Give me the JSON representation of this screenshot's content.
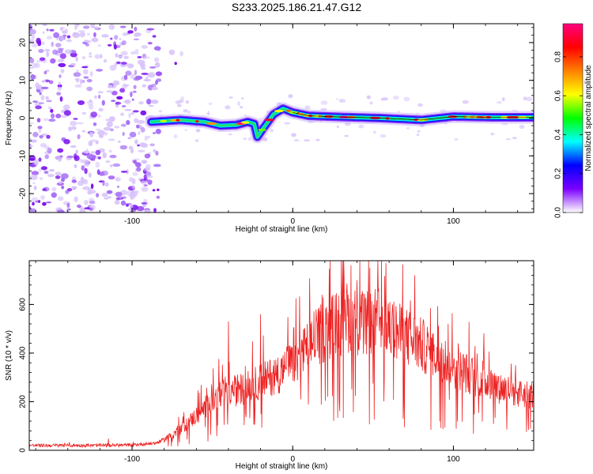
{
  "title": "S233.2025.186.21.47.G12",
  "chart_data": [
    {
      "type": "heatmap",
      "xlabel": "Height of straight line (km)",
      "ylabel": "Frequency (Hz)",
      "xlim": [
        -164,
        150
      ],
      "ylim": [
        -25,
        25
      ],
      "xticks": [
        -100,
        0,
        100
      ],
      "yticks": [
        -20,
        -10,
        0,
        10,
        20
      ],
      "colorbar": {
        "label": "Normalized spectral amplitude",
        "range": [
          0.0,
          0.97
        ],
        "ticks": [
          0.0,
          0.2,
          0.4,
          0.6,
          0.8
        ],
        "colormap": [
          "#ffffff",
          "#7b00ff",
          "#0000ff",
          "#00ffff",
          "#00ff00",
          "#ffff00",
          "#ff8000",
          "#ff0000",
          "#ff0080"
        ]
      },
      "noise_region": {
        "x": [
          -164,
          -83
        ],
        "y": [
          -25,
          25
        ]
      },
      "signal_trace": [
        {
          "x": -88,
          "y": -1.0
        },
        {
          "x": -70,
          "y": -0.5
        },
        {
          "x": -55,
          "y": -1.0
        },
        {
          "x": -45,
          "y": -2.0
        },
        {
          "x": -35,
          "y": -1.8
        },
        {
          "x": -28,
          "y": -1.0
        },
        {
          "x": -24,
          "y": -1.5
        },
        {
          "x": -22,
          "y": -5.0
        },
        {
          "x": -18,
          "y": -2.5
        },
        {
          "x": -12,
          "y": 1.0
        },
        {
          "x": -6,
          "y": 2.5
        },
        {
          "x": 0,
          "y": 1.5
        },
        {
          "x": 10,
          "y": 0.6
        },
        {
          "x": 30,
          "y": 0.3
        },
        {
          "x": 55,
          "y": 0.0
        },
        {
          "x": 80,
          "y": -0.5
        },
        {
          "x": 100,
          "y": 0.4
        },
        {
          "x": 125,
          "y": 0.2
        },
        {
          "x": 150,
          "y": 0.2
        }
      ]
    },
    {
      "type": "line",
      "xlabel": "Height of straight line (km)",
      "ylabel": "SNR (10 * v/v)",
      "xlim": [
        -164,
        150
      ],
      "ylim": [
        0,
        780
      ],
      "xticks": [
        -100,
        0,
        100
      ],
      "yticks": [
        0,
        200,
        400,
        600
      ],
      "series": [
        {
          "color": "#ee2222",
          "envelope": [
            {
              "x": -164,
              "y": 20
            },
            {
              "x": -120,
              "y": 20
            },
            {
              "x": -100,
              "y": 22
            },
            {
              "x": -85,
              "y": 30
            },
            {
              "x": -75,
              "y": 60
            },
            {
              "x": -65,
              "y": 110
            },
            {
              "x": -55,
              "y": 170
            },
            {
              "x": -45,
              "y": 220
            },
            {
              "x": -35,
              "y": 240
            },
            {
              "x": -25,
              "y": 260
            },
            {
              "x": -15,
              "y": 290
            },
            {
              "x": -5,
              "y": 320
            },
            {
              "x": 5,
              "y": 380
            },
            {
              "x": 15,
              "y": 450
            },
            {
              "x": 25,
              "y": 500
            },
            {
              "x": 35,
              "y": 530
            },
            {
              "x": 45,
              "y": 500
            },
            {
              "x": 55,
              "y": 520
            },
            {
              "x": 65,
              "y": 470
            },
            {
              "x": 75,
              "y": 440
            },
            {
              "x": 85,
              "y": 400
            },
            {
              "x": 95,
              "y": 360
            },
            {
              "x": 105,
              "y": 320
            },
            {
              "x": 115,
              "y": 290
            },
            {
              "x": 125,
              "y": 260
            },
            {
              "x": 135,
              "y": 240
            },
            {
              "x": 150,
              "y": 220
            }
          ],
          "peaks": [
            {
              "x": -40,
              "y": 530
            },
            {
              "x": -20,
              "y": 560
            },
            {
              "x": 25,
              "y": 640
            },
            {
              "x": 32,
              "y": 720
            },
            {
              "x": 40,
              "y": 700
            },
            {
              "x": 48,
              "y": 750
            },
            {
              "x": 53,
              "y": 780
            },
            {
              "x": 58,
              "y": 770
            },
            {
              "x": 76,
              "y": 720
            },
            {
              "x": 103,
              "y": 440
            }
          ]
        }
      ]
    }
  ]
}
